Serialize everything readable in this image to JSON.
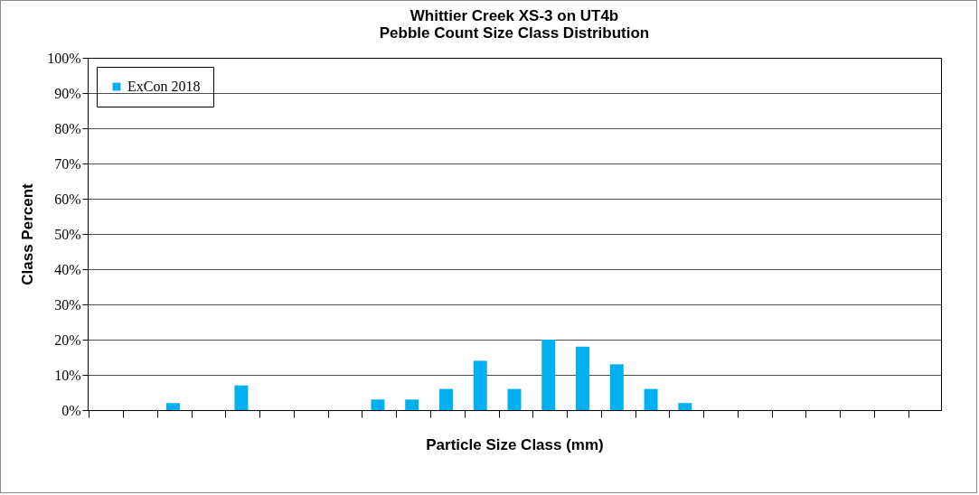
{
  "chart_data": {
    "type": "bar",
    "title": "Whittier Creek XS-3 on UT4b",
    "subtitle": "Pebble Count Size Class Distribution",
    "xlabel": "Particle Size Class (mm)",
    "ylabel": "Class Percent",
    "categories": [
      null,
      null,
      null,
      null,
      null,
      null,
      null,
      null,
      null,
      null,
      null,
      null,
      null,
      null,
      null,
      null,
      null,
      null,
      null,
      null,
      null,
      null,
      null,
      null,
      null
    ],
    "series": [
      {
        "name": "ExCon 2018",
        "color": "#00b0f0",
        "values": [
          0,
          0,
          2,
          0,
          7,
          0,
          0,
          0,
          3,
          3,
          6,
          14,
          6,
          20,
          18,
          13,
          6,
          2,
          0,
          0,
          0,
          0,
          0,
          0,
          0
        ]
      }
    ],
    "ylim": [
      0,
      100
    ],
    "yticks": [
      {
        "value": 0,
        "label": "0%"
      },
      {
        "value": 10,
        "label": "10%"
      },
      {
        "value": 20,
        "label": "20%"
      },
      {
        "value": 30,
        "label": "30%"
      },
      {
        "value": 40,
        "label": "40%"
      },
      {
        "value": 50,
        "label": "50%"
      },
      {
        "value": 60,
        "label": "60%"
      },
      {
        "value": 70,
        "label": "70%"
      },
      {
        "value": 80,
        "label": "80%"
      },
      {
        "value": 90,
        "label": "90%"
      },
      {
        "value": 100,
        "label": "100%"
      }
    ],
    "grid": "y",
    "legend": "top left",
    "tick_labels": "y"
  }
}
